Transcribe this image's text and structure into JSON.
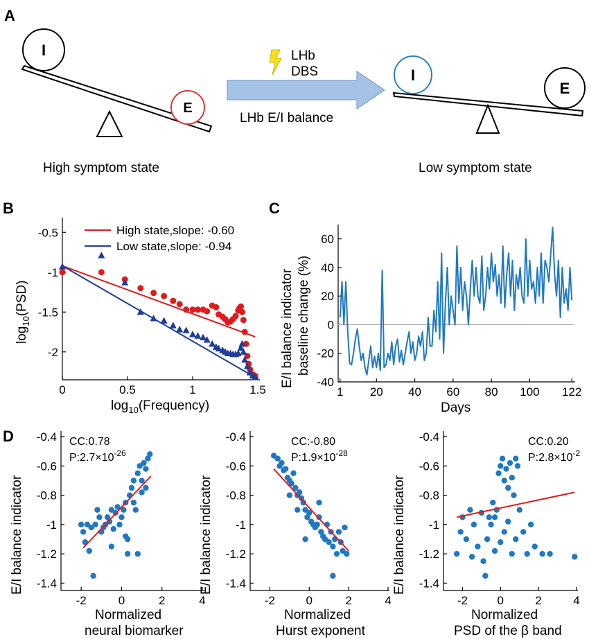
{
  "panels": {
    "A": "A",
    "B": "B",
    "C": "C",
    "D": "D"
  },
  "schematic": {
    "inhibitory_label": "I",
    "excitatory_label": "E",
    "arrow_top_line1": "LHb",
    "arrow_top_line2": "DBS",
    "arrow_bottom": "LHb E/I balance",
    "left_state": "High symptom state",
    "right_state": "Low symptom state",
    "colors": {
      "arrow": "#a4c2e6",
      "e_circle_left": "#e03232",
      "i_circle_right": "#2a7fc2",
      "bolt": "#f6e21c"
    }
  },
  "chart_data": [
    {
      "id": "B",
      "type": "scatter",
      "xlabel_main": "log",
      "xlabel_sub": "10",
      "xlabel_rest": "(Frequency)",
      "ylabel_main": "log",
      "ylabel_sub": "10",
      "ylabel_rest": "(PSD)",
      "xlim": [
        0,
        1.5
      ],
      "ylim": [
        -2.35,
        -0.35
      ],
      "xticks": [
        0,
        0.5,
        1,
        1.5
      ],
      "xtick_labels": [
        "0",
        "0.5",
        "1",
        "1.5"
      ],
      "yticks": [
        -2,
        -1.5,
        -1,
        -0.5
      ],
      "ytick_labels": [
        "-2",
        "-1.5",
        "-1",
        "-0.5"
      ],
      "legend_position": "top",
      "series": [
        {
          "name": "High state,slope: -0.60",
          "color": "#e31a1c",
          "marker": "circle",
          "fit": [
            [
              0,
              -0.92
            ],
            [
              1.48,
              -1.81
            ]
          ],
          "points": [
            [
              0,
              -1.0
            ],
            [
              0.3,
              -1.0
            ],
            [
              0.48,
              -1.09
            ],
            [
              0.6,
              -1.2
            ],
            [
              0.7,
              -1.26
            ],
            [
              0.78,
              -1.3
            ],
            [
              0.85,
              -1.36
            ],
            [
              0.9,
              -1.4
            ],
            [
              0.95,
              -1.47
            ],
            [
              1.0,
              -1.47
            ],
            [
              1.04,
              -1.47
            ],
            [
              1.08,
              -1.47
            ],
            [
              1.11,
              -1.49
            ],
            [
              1.15,
              -1.42
            ],
            [
              1.18,
              -1.44
            ],
            [
              1.2,
              -1.53
            ],
            [
              1.23,
              -1.56
            ],
            [
              1.25,
              -1.59
            ],
            [
              1.27,
              -1.63
            ],
            [
              1.29,
              -1.62
            ],
            [
              1.31,
              -1.59
            ],
            [
              1.33,
              -1.55
            ],
            [
              1.35,
              -1.48
            ],
            [
              1.36,
              -1.45
            ],
            [
              1.37,
              -1.43
            ],
            [
              1.38,
              -1.5
            ],
            [
              1.39,
              -1.6
            ],
            [
              1.4,
              -1.75
            ],
            [
              1.41,
              -1.9
            ],
            [
              1.42,
              -2.05
            ],
            [
              1.43,
              -2.15
            ],
            [
              1.44,
              -2.22
            ],
            [
              1.46,
              -2.28
            ],
            [
              1.48,
              -2.3
            ]
          ]
        },
        {
          "name": "Low state,slope: -0.94",
          "color": "#1f3e97",
          "marker": "triangle",
          "fit": [
            [
              0,
              -0.92
            ],
            [
              1.48,
              -2.32
            ]
          ],
          "points": [
            [
              0,
              -0.93
            ],
            [
              0.3,
              -0.79
            ],
            [
              0.48,
              -1.13
            ],
            [
              0.6,
              -1.5
            ],
            [
              0.7,
              -1.58
            ],
            [
              0.78,
              -1.61
            ],
            [
              0.85,
              -1.67
            ],
            [
              0.9,
              -1.72
            ],
            [
              0.95,
              -1.73
            ],
            [
              1.0,
              -1.78
            ],
            [
              1.04,
              -1.8
            ],
            [
              1.08,
              -1.82
            ],
            [
              1.11,
              -1.85
            ],
            [
              1.15,
              -1.9
            ],
            [
              1.18,
              -1.94
            ],
            [
              1.2,
              -1.96
            ],
            [
              1.23,
              -1.98
            ],
            [
              1.25,
              -2.0
            ],
            [
              1.27,
              -2.02
            ],
            [
              1.29,
              -2.02
            ],
            [
              1.31,
              -2.03
            ],
            [
              1.33,
              -2.03
            ],
            [
              1.35,
              -2.02
            ],
            [
              1.37,
              -1.95
            ],
            [
              1.38,
              -1.9
            ],
            [
              1.39,
              -2.0
            ],
            [
              1.4,
              -2.1
            ],
            [
              1.42,
              -2.18
            ],
            [
              1.44,
              -2.26
            ],
            [
              1.46,
              -2.3
            ],
            [
              1.48,
              -2.32
            ]
          ]
        }
      ]
    },
    {
      "id": "C",
      "type": "line",
      "xlabel": "Days",
      "ylabel_line1": "E/I balance indicator",
      "ylabel_line2": "baseline change (%)",
      "xlim": [
        0,
        123
      ],
      "ylim": [
        -40,
        70
      ],
      "xticks": [
        1,
        20,
        40,
        60,
        80,
        100,
        122
      ],
      "xtick_labels": [
        "1",
        "20",
        "40",
        "60",
        "80",
        "100",
        "122"
      ],
      "yticks": [
        -40,
        -20,
        0,
        20,
        40,
        60
      ],
      "ytick_labels": [
        "-40",
        "-20",
        "0",
        "20",
        "40",
        "60"
      ],
      "baseline": 0,
      "color": "#1f78c1",
      "values": [
        5,
        30,
        0,
        30,
        -5,
        -27,
        -28,
        -20,
        -10,
        -3,
        -15,
        -25,
        -20,
        -30,
        -35,
        -25,
        -15,
        -30,
        -22,
        -30,
        -20,
        -32,
        38,
        -30,
        -28,
        -20,
        -25,
        -12,
        -28,
        -15,
        -10,
        -26,
        -18,
        -28,
        -20,
        -12,
        -5,
        -20,
        -12,
        -25,
        -20,
        -8,
        -15,
        -5,
        -25,
        -20,
        5,
        -15,
        -15,
        10,
        -5,
        30,
        -10,
        50,
        -20,
        15,
        40,
        0,
        20,
        10,
        0,
        55,
        15,
        40,
        10,
        30,
        20,
        0,
        25,
        45,
        20,
        40,
        20,
        15,
        48,
        10,
        20,
        40,
        25,
        50,
        30,
        42,
        20,
        35,
        15,
        55,
        12,
        35,
        50,
        20,
        45,
        10,
        35,
        25,
        40,
        20,
        15,
        60,
        20,
        45,
        25,
        30,
        15,
        40,
        20,
        50,
        15,
        45,
        40,
        30,
        50,
        68,
        35,
        20,
        45,
        5,
        40,
        15,
        25,
        10,
        40,
        17
      ]
    },
    {
      "id": "D1",
      "type": "scatter",
      "xlabel_line1": "Normalized",
      "xlabel_line2": "neural biomarker",
      "ylabel": "E/I balance indicator",
      "annot_cc": "CC:0.78",
      "annot_p": "P:2.7×10",
      "annot_exp": "-26",
      "xlim": [
        -3,
        4
      ],
      "ylim": [
        -1.45,
        -0.4
      ],
      "xticks": [
        -2,
        0,
        2,
        4
      ],
      "xtick_labels": [
        "-2",
        "0",
        "2",
        "4"
      ],
      "yticks": [
        -1.4,
        -1.2,
        -1,
        -0.8,
        -0.6,
        -0.4
      ],
      "ytick_labels": [
        "-1.4",
        "-1.2",
        "-1",
        "-0.8",
        "-0.6",
        "-0.4"
      ],
      "fit": [
        [
          -1.9,
          -1.16
        ],
        [
          1.45,
          -0.67
        ]
      ],
      "color": "#1f78c1",
      "fit_color": "#e31a1c",
      "points": [
        [
          -2.0,
          -1.0
        ],
        [
          -1.9,
          -1.05
        ],
        [
          -1.8,
          -1.12
        ],
        [
          -1.7,
          -1.0
        ],
        [
          -1.6,
          -1.18
        ],
        [
          -1.5,
          -1.02
        ],
        [
          -1.4,
          -1.35
        ],
        [
          -1.3,
          -1.0
        ],
        [
          -1.2,
          -0.9
        ],
        [
          -1.1,
          -0.95
        ],
        [
          -1.0,
          -1.05
        ],
        [
          -0.9,
          -1.02
        ],
        [
          -0.8,
          -1.0
        ],
        [
          -0.7,
          -0.95
        ],
        [
          -0.6,
          -0.98
        ],
        [
          -0.5,
          -0.9
        ],
        [
          -0.4,
          -1.03
        ],
        [
          -0.3,
          -0.92
        ],
        [
          -0.2,
          -0.88
        ],
        [
          -0.1,
          -1.0
        ],
        [
          0.0,
          -0.95
        ],
        [
          0.1,
          -0.9
        ],
        [
          0.2,
          -0.85
        ],
        [
          0.3,
          -1.1
        ],
        [
          0.3,
          -1.2
        ],
        [
          0.4,
          -0.8
        ],
        [
          0.5,
          -0.75
        ],
        [
          0.6,
          -0.7
        ],
        [
          0.7,
          -0.9
        ],
        [
          0.8,
          -0.65
        ],
        [
          0.9,
          -0.6
        ],
        [
          1.0,
          -0.7
        ],
        [
          1.1,
          -0.58
        ],
        [
          1.2,
          -0.62
        ],
        [
          1.3,
          -0.55
        ],
        [
          1.4,
          -0.52
        ],
        [
          0.8,
          -1.2
        ],
        [
          1.0,
          -0.78
        ],
        [
          -0.5,
          -1.15
        ],
        [
          0.2,
          -1.08
        ],
        [
          0.6,
          -0.85
        ],
        [
          1.2,
          -0.75
        ]
      ]
    },
    {
      "id": "D2",
      "type": "scatter",
      "xlabel_line1": "Normalized",
      "xlabel_line2": "Hurst exponent",
      "ylabel": "E/I balance indicator",
      "annot_cc": "CC:-0.80",
      "annot_p": "P:1.9×10",
      "annot_exp": "-28",
      "xlim": [
        -3,
        4
      ],
      "ylim": [
        -1.45,
        -0.4
      ],
      "xticks": [
        -2,
        0,
        2,
        4
      ],
      "xtick_labels": [
        "-2",
        "0",
        "2",
        "4"
      ],
      "yticks": [
        -1.4,
        -1.2,
        -1,
        -0.8,
        -0.6,
        -0.4
      ],
      "ytick_labels": [
        "-1.4",
        "-1.2",
        "-1",
        "-0.8",
        "-0.6",
        "-0.4"
      ],
      "fit": [
        [
          -1.8,
          -0.62
        ],
        [
          2.0,
          -1.18
        ]
      ],
      "color": "#1f78c1",
      "fit_color": "#e31a1c",
      "points": [
        [
          -1.8,
          -0.53
        ],
        [
          -1.6,
          -0.55
        ],
        [
          -1.5,
          -0.6
        ],
        [
          -1.4,
          -0.58
        ],
        [
          -1.3,
          -0.63
        ],
        [
          -1.2,
          -0.62
        ],
        [
          -1.1,
          -0.68
        ],
        [
          -1.0,
          -0.7
        ],
        [
          -0.9,
          -0.72
        ],
        [
          -0.8,
          -0.65
        ],
        [
          -0.7,
          -0.75
        ],
        [
          -0.6,
          -0.8
        ],
        [
          -0.5,
          -0.78
        ],
        [
          -0.4,
          -0.82
        ],
        [
          -0.3,
          -0.85
        ],
        [
          -0.2,
          -0.9
        ],
        [
          -0.1,
          -0.95
        ],
        [
          0.0,
          -0.92
        ],
        [
          0.1,
          -0.98
        ],
        [
          0.2,
          -1.0
        ],
        [
          0.3,
          -1.02
        ],
        [
          0.4,
          -1.0
        ],
        [
          0.5,
          -0.95
        ],
        [
          0.6,
          -1.05
        ],
        [
          0.7,
          -1.08
        ],
        [
          0.8,
          -1.1
        ],
        [
          0.9,
          -1.0
        ],
        [
          1.0,
          -1.12
        ],
        [
          1.1,
          -1.05
        ],
        [
          1.2,
          -1.15
        ],
        [
          1.3,
          -1.1
        ],
        [
          1.4,
          -1.2
        ],
        [
          1.5,
          -1.05
        ],
        [
          1.6,
          -1.12
        ],
        [
          1.7,
          -1.18
        ],
        [
          1.8,
          -1.02
        ],
        [
          1.9,
          -1.2
        ],
        [
          1.2,
          -1.35
        ],
        [
          -0.2,
          -1.1
        ],
        [
          0.5,
          -0.85
        ],
        [
          -0.6,
          -0.9
        ],
        [
          -1.0,
          -0.8
        ]
      ]
    },
    {
      "id": "D3",
      "type": "scatter",
      "xlabel_line1": "Normalized",
      "xlabel_line2": "PSD of the β band",
      "ylabel": "E/I balance indicator",
      "annot_cc": "CC:0.20",
      "annot_p": "P:2.8×10",
      "annot_exp": "-2",
      "xlim": [
        -3,
        4
      ],
      "ylim": [
        -1.45,
        -0.4
      ],
      "xticks": [
        -2,
        0,
        2,
        4
      ],
      "xtick_labels": [
        "-2",
        "0",
        "2",
        "4"
      ],
      "yticks": [
        -1.4,
        -1.2,
        -1,
        -0.8,
        -0.6,
        -0.4
      ],
      "ytick_labels": [
        "-1.4",
        "-1.2",
        "-1",
        "-0.8",
        "-0.6",
        "-0.4"
      ],
      "fit": [
        [
          -2.3,
          -0.95
        ],
        [
          3.9,
          -0.78
        ]
      ],
      "color": "#1f78c1",
      "fit_color": "#e31a1c",
      "points": [
        [
          -2.3,
          -1.2
        ],
        [
          -2.1,
          -1.05
        ],
        [
          -2.0,
          -0.95
        ],
        [
          -1.8,
          -1.1
        ],
        [
          -1.6,
          -0.9
        ],
        [
          -1.4,
          -1.0
        ],
        [
          -1.2,
          -1.15
        ],
        [
          -1.0,
          -0.92
        ],
        [
          -0.9,
          -1.25
        ],
        [
          -0.8,
          -1.35
        ],
        [
          -0.7,
          -1.1
        ],
        [
          -0.6,
          -0.95
        ],
        [
          -0.5,
          -1.0
        ],
        [
          -0.4,
          -0.85
        ],
        [
          -0.3,
          -1.18
        ],
        [
          -0.2,
          -0.9
        ],
        [
          -0.1,
          -0.65
        ],
        [
          0.0,
          -0.6
        ],
        [
          0.1,
          -0.55
        ],
        [
          0.2,
          -0.7
        ],
        [
          0.3,
          -0.62
        ],
        [
          0.4,
          -0.75
        ],
        [
          0.5,
          -0.58
        ],
        [
          0.6,
          -0.68
        ],
        [
          0.7,
          -0.8
        ],
        [
          0.8,
          -0.55
        ],
        [
          0.9,
          -0.6
        ],
        [
          0.2,
          -1.05
        ],
        [
          0.4,
          -0.98
        ],
        [
          0.6,
          -1.2
        ],
        [
          0.8,
          -1.1
        ],
        [
          1.0,
          -0.9
        ],
        [
          1.2,
          -1.05
        ],
        [
          1.4,
          -1.2
        ],
        [
          1.6,
          -1.0
        ],
        [
          1.8,
          -1.15
        ],
        [
          2.2,
          -1.2
        ],
        [
          2.6,
          -1.2
        ],
        [
          3.9,
          -1.22
        ],
        [
          -0.3,
          -0.95
        ],
        [
          0.0,
          -1.12
        ],
        [
          -1.5,
          -1.22
        ]
      ]
    }
  ]
}
